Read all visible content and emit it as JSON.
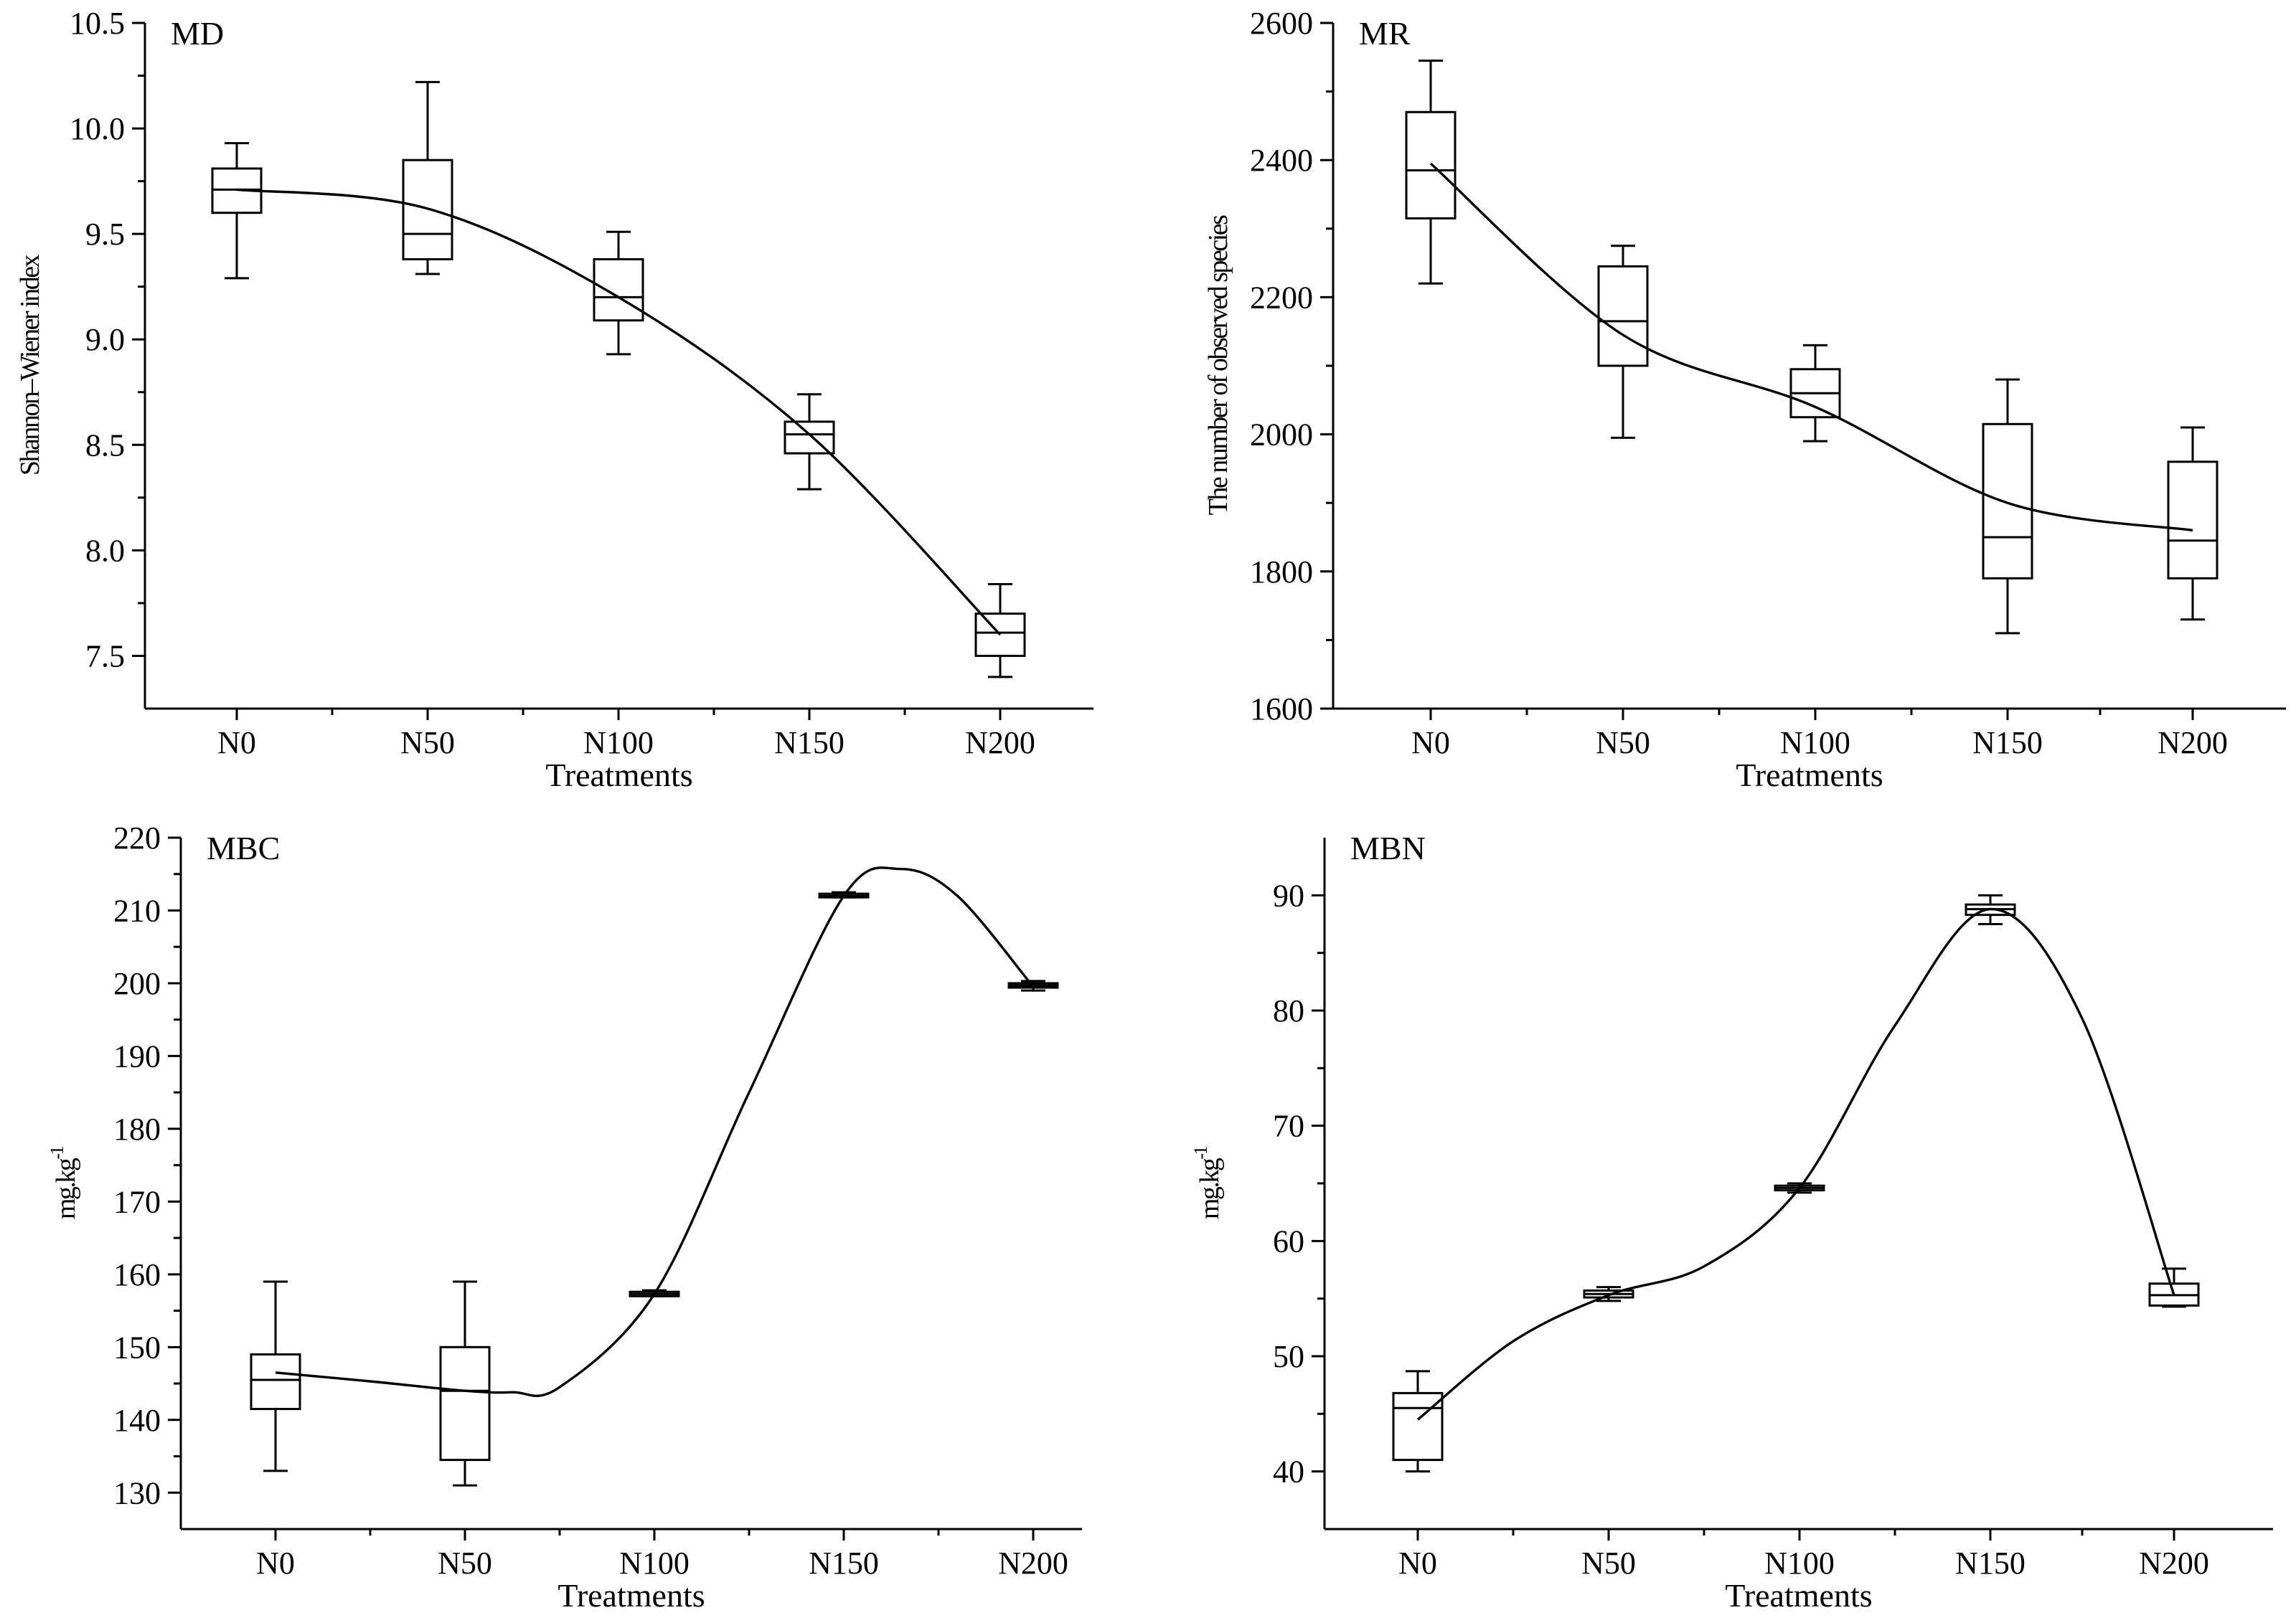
{
  "chart_data": [
    {
      "type": "box",
      "panel": "MD",
      "title": "MD",
      "xlabel": "Treatments",
      "ylabel": "Shannon–Wiener index",
      "ylim": [
        7.25,
        10.5
      ],
      "yticks": [
        7.5,
        8.0,
        8.5,
        9.0,
        9.5,
        10.0,
        10.5
      ],
      "ytick_labels": [
        "7.5",
        "8.0",
        "8.5",
        "9.0",
        "9.5",
        "10.0",
        "10.5"
      ],
      "categories": [
        "N0",
        "N50",
        "N100",
        "N150",
        "N200"
      ],
      "boxes": [
        {
          "min": 9.29,
          "q1": 9.6,
          "median": 9.71,
          "q3": 9.81,
          "max": 9.93
        },
        {
          "min": 9.31,
          "q1": 9.38,
          "median": 9.5,
          "q3": 9.85,
          "max": 10.22
        },
        {
          "min": 8.93,
          "q1": 9.09,
          "median": 9.2,
          "q3": 9.38,
          "max": 9.51
        },
        {
          "min": 8.29,
          "q1": 8.46,
          "median": 8.55,
          "q3": 8.61,
          "max": 8.74
        },
        {
          "min": 7.4,
          "q1": 7.5,
          "median": 7.61,
          "q3": 7.7,
          "max": 7.84
        }
      ],
      "trend": {
        "x": [
          0,
          1,
          2,
          3,
          4
        ],
        "y": [
          9.71,
          9.62,
          9.2,
          8.55,
          7.6
        ]
      }
    },
    {
      "type": "box",
      "panel": "MR",
      "title": "MR",
      "xlabel": "Treatments",
      "ylabel": "The number of observed species",
      "ylim": [
        1600,
        2600
      ],
      "yticks": [
        1600,
        1800,
        2000,
        2200,
        2400,
        2600
      ],
      "ytick_labels": [
        "1600",
        "1800",
        "2000",
        "2200",
        "2400",
        "2600"
      ],
      "categories": [
        "N0",
        "N50",
        "N100",
        "N150",
        "N200"
      ],
      "boxes": [
        {
          "min": 2220,
          "q1": 2315,
          "median": 2385,
          "q3": 2470,
          "max": 2545
        },
        {
          "min": 1995,
          "q1": 2100,
          "median": 2165,
          "q3": 2245,
          "max": 2275
        },
        {
          "min": 1990,
          "q1": 2025,
          "median": 2060,
          "q3": 2095,
          "max": 2130
        },
        {
          "min": 1710,
          "q1": 1790,
          "median": 1850,
          "q3": 2015,
          "max": 2080
        },
        {
          "min": 1730,
          "q1": 1790,
          "median": 1845,
          "q3": 1960,
          "max": 2010
        }
      ],
      "trend": {
        "x": [
          0,
          1,
          2,
          3,
          4
        ],
        "y": [
          2395,
          2145,
          2040,
          1900,
          1860
        ]
      }
    },
    {
      "type": "box",
      "panel": "MBC",
      "title": "MBC",
      "xlabel": "Treatments",
      "ylabel": "mg.kg",
      "ylabel_sup": "-1",
      "ylim": [
        125,
        220
      ],
      "yticks": [
        130,
        140,
        150,
        160,
        170,
        180,
        190,
        200,
        210,
        220
      ],
      "ytick_labels": [
        "130",
        "140",
        "150",
        "160",
        "170",
        "180",
        "190",
        "200",
        "210",
        "220"
      ],
      "categories": [
        "N0",
        "N50",
        "N100",
        "N150",
        "N200"
      ],
      "boxes": [
        {
          "min": 133,
          "q1": 141.5,
          "median": 145.5,
          "q3": 149,
          "max": 159
        },
        {
          "min": 131,
          "q1": 134.5,
          "median": 144,
          "q3": 150,
          "max": 159
        },
        {
          "min": 157,
          "q1": 157,
          "median": 157.3,
          "q3": 157.6,
          "max": 157.8
        },
        {
          "min": 211.8,
          "q1": 211.8,
          "median": 212,
          "q3": 212.3,
          "max": 212.5
        },
        {
          "min": 199,
          "q1": 199.4,
          "median": 199.7,
          "q3": 200,
          "max": 200.3
        }
      ],
      "trend": {
        "x": [
          0,
          0.5,
          1,
          1.25,
          1.5,
          2,
          2.5,
          3,
          3.3,
          3.6,
          4
        ],
        "y": [
          146.5,
          145.3,
          144,
          143.8,
          144.5,
          157.3,
          185,
          212,
          215.7,
          212,
          199.5
        ]
      }
    },
    {
      "type": "box",
      "panel": "MBN",
      "title": "MBN",
      "xlabel": "Treatments",
      "ylabel": "mg.kg",
      "ylabel_sup": "-1",
      "ylim": [
        35,
        95
      ],
      "yticks": [
        40,
        50,
        60,
        70,
        80,
        90
      ],
      "ytick_labels": [
        "40",
        "50",
        "60",
        "70",
        "80",
        "90"
      ],
      "categories": [
        "N0",
        "N50",
        "N100",
        "N150",
        "N200"
      ],
      "boxes": [
        {
          "min": 40,
          "q1": 41,
          "median": 45.5,
          "q3": 46.8,
          "max": 48.7
        },
        {
          "min": 54.8,
          "q1": 55.1,
          "median": 55.4,
          "q3": 55.7,
          "max": 56
        },
        {
          "min": 64.2,
          "q1": 64.4,
          "median": 64.6,
          "q3": 64.8,
          "max": 65
        },
        {
          "min": 87.5,
          "q1": 88.3,
          "median": 88.8,
          "q3": 89.2,
          "max": 90
        },
        {
          "min": 54.3,
          "q1": 54.4,
          "median": 55.3,
          "q3": 56.3,
          "max": 57.6
        }
      ],
      "trend": {
        "x": [
          0,
          0.5,
          1,
          1.5,
          2,
          2.5,
          3,
          3.5,
          4
        ],
        "y": [
          44.5,
          51.3,
          55.3,
          57.8,
          64.6,
          78.7,
          88.8,
          79.3,
          55.3
        ]
      }
    }
  ]
}
